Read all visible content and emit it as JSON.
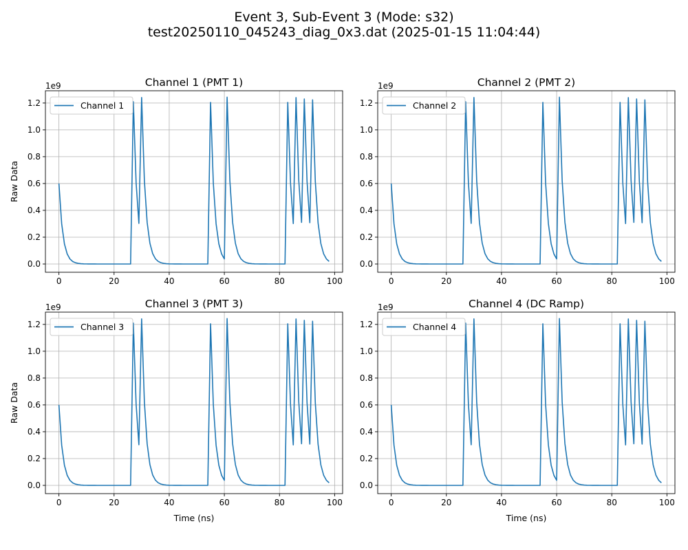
{
  "suptitle": {
    "line1": "Event 3, Sub-Event 3 (Mode: s32)",
    "line2": "test20250110_045243_diag_0x3.dat (2025-01-15 11:04:44)"
  },
  "chart_data": [
    {
      "type": "line",
      "title": "Channel 1 (PMT 1)",
      "xlabel": "",
      "ylabel": "Raw Data",
      "y_offset_text": "1e9",
      "xlim": [
        -4.9,
        102.9
      ],
      "ylim": [
        -0.0615,
        1.2915
      ],
      "xticks": [
        0,
        20,
        40,
        60,
        80,
        100
      ],
      "yticks": [
        0.0,
        0.2,
        0.4,
        0.6,
        0.8,
        1.0,
        1.2
      ],
      "ytick_labels": [
        "0.0",
        "0.2",
        "0.4",
        "0.6",
        "0.8",
        "1.0",
        "1.2"
      ],
      "grid": true,
      "legend_position": "upper left",
      "series": [
        {
          "name": "Channel 1",
          "color": "#1f77b4",
          "x": [],
          "y": []
        }
      ]
    },
    {
      "type": "line",
      "title": "Channel 2 (PMT 2)",
      "xlabel": "",
      "ylabel": "",
      "y_offset_text": "1e9",
      "xlim": [
        -4.9,
        102.9
      ],
      "ylim": [
        -0.0615,
        1.2915
      ],
      "xticks": [
        0,
        20,
        40,
        60,
        80,
        100
      ],
      "yticks": [
        0.0,
        0.2,
        0.4,
        0.6,
        0.8,
        1.0,
        1.2
      ],
      "ytick_labels": [
        "0.0",
        "0.2",
        "0.4",
        "0.6",
        "0.8",
        "1.0",
        "1.2"
      ],
      "grid": true,
      "legend_position": "upper left",
      "series": [
        {
          "name": "Channel 2",
          "color": "#1f77b4",
          "x": [],
          "y": []
        }
      ]
    },
    {
      "type": "line",
      "title": "Channel 3 (PMT 3)",
      "xlabel": "Time (ns)",
      "ylabel": "Raw Data",
      "y_offset_text": "1e9",
      "xlim": [
        -4.9,
        102.9
      ],
      "ylim": [
        -0.0615,
        1.2915
      ],
      "xticks": [
        0,
        20,
        40,
        60,
        80,
        100
      ],
      "yticks": [
        0.0,
        0.2,
        0.4,
        0.6,
        0.8,
        1.0,
        1.2
      ],
      "ytick_labels": [
        "0.0",
        "0.2",
        "0.4",
        "0.6",
        "0.8",
        "1.0",
        "1.2"
      ],
      "grid": true,
      "legend_position": "upper left",
      "series": [
        {
          "name": "Channel 3",
          "color": "#1f77b4",
          "x": [],
          "y": []
        }
      ]
    },
    {
      "type": "line",
      "title": "Channel 4 (DC Ramp)",
      "xlabel": "Time (ns)",
      "ylabel": "",
      "y_offset_text": "1e9",
      "xlim": [
        -4.9,
        102.9
      ],
      "ylim": [
        -0.0615,
        1.2915
      ],
      "xticks": [
        0,
        20,
        40,
        60,
        80,
        100
      ],
      "yticks": [
        0.0,
        0.2,
        0.4,
        0.6,
        0.8,
        1.0,
        1.2
      ],
      "ytick_labels": [
        "0.0",
        "0.2",
        "0.4",
        "0.6",
        "0.8",
        "1.0",
        "1.2"
      ],
      "grid": true,
      "legend_position": "upper left",
      "series": [
        {
          "name": "Channel 4",
          "color": "#1f77b4",
          "x": [],
          "y": []
        }
      ]
    }
  ]
}
